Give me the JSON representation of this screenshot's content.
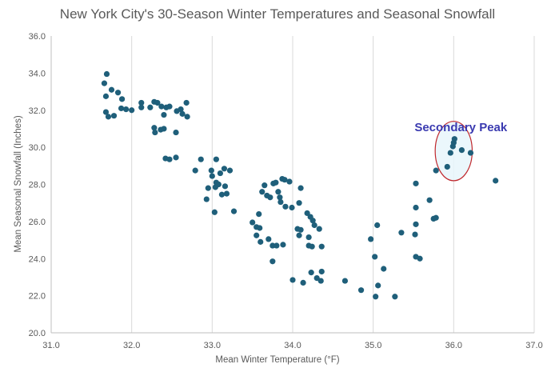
{
  "chart_data": {
    "type": "scatter",
    "title": "New York City's 30-Season Winter Temperatures and Seasonal Snowfall",
    "xlabel": "Mean Winter Temperature  (°F)",
    "ylabel": "Mean Seasonal Snowfall (Inches)",
    "xlim": [
      31.0,
      37.0
    ],
    "ylim": [
      20.0,
      36.0
    ],
    "x_ticks": [
      "31.0",
      "32.0",
      "33.0",
      "34.0",
      "35.0",
      "36.0",
      "37.0"
    ],
    "y_ticks": [
      "20.0",
      "22.0",
      "24.0",
      "26.0",
      "28.0",
      "30.0",
      "32.0",
      "34.0",
      "36.0"
    ],
    "grid": "vertical",
    "marker_color": "#1f5f7a",
    "annotation": {
      "text": "Secondary Peak",
      "color": "#3a3ab0",
      "x": 36.0,
      "y": 29.8,
      "ellipse_rx": 0.23,
      "ellipse_ry": 1.6
    },
    "points": [
      [
        31.69,
        33.95
      ],
      [
        31.66,
        33.45
      ],
      [
        31.68,
        32.75
      ],
      [
        31.75,
        33.1
      ],
      [
        31.83,
        32.95
      ],
      [
        31.88,
        32.6
      ],
      [
        31.68,
        31.9
      ],
      [
        31.71,
        31.65
      ],
      [
        31.78,
        31.7
      ],
      [
        31.87,
        32.1
      ],
      [
        31.93,
        32.05
      ],
      [
        32.0,
        32.0
      ],
      [
        32.12,
        32.15
      ],
      [
        32.12,
        32.4
      ],
      [
        32.23,
        32.15
      ],
      [
        32.28,
        32.45
      ],
      [
        32.32,
        32.4
      ],
      [
        32.37,
        32.2
      ],
      [
        32.43,
        32.15
      ],
      [
        32.47,
        32.2
      ],
      [
        32.4,
        31.75
      ],
      [
        32.28,
        31.05
      ],
      [
        32.29,
        30.8
      ],
      [
        32.36,
        30.95
      ],
      [
        32.4,
        31.0
      ],
      [
        32.55,
        30.8
      ],
      [
        32.56,
        31.95
      ],
      [
        32.61,
        32.05
      ],
      [
        32.63,
        31.8
      ],
      [
        32.68,
        32.4
      ],
      [
        32.69,
        31.65
      ],
      [
        32.42,
        29.4
      ],
      [
        32.47,
        29.35
      ],
      [
        32.55,
        29.45
      ],
      [
        32.79,
        28.75
      ],
      [
        32.86,
        29.35
      ],
      [
        32.95,
        27.8
      ],
      [
        32.93,
        27.2
      ],
      [
        32.99,
        28.75
      ],
      [
        33.0,
        28.45
      ],
      [
        33.05,
        29.35
      ],
      [
        33.04,
        27.85
      ],
      [
        33.05,
        28.1
      ],
      [
        33.08,
        28.0
      ],
      [
        33.1,
        28.6
      ],
      [
        33.12,
        27.45
      ],
      [
        33.15,
        28.85
      ],
      [
        33.16,
        27.9
      ],
      [
        33.18,
        27.5
      ],
      [
        33.22,
        28.75
      ],
      [
        33.03,
        26.5
      ],
      [
        33.27,
        26.55
      ],
      [
        33.5,
        25.95
      ],
      [
        33.55,
        25.25
      ],
      [
        33.58,
        26.4
      ],
      [
        33.55,
        25.7
      ],
      [
        33.59,
        25.65
      ],
      [
        33.62,
        27.6
      ],
      [
        33.65,
        27.95
      ],
      [
        33.68,
        27.4
      ],
      [
        33.72,
        27.3
      ],
      [
        33.76,
        28.05
      ],
      [
        33.79,
        28.1
      ],
      [
        33.82,
        27.6
      ],
      [
        33.84,
        27.3
      ],
      [
        33.85,
        27.05
      ],
      [
        33.87,
        28.3
      ],
      [
        33.9,
        28.25
      ],
      [
        33.96,
        28.15
      ],
      [
        33.91,
        26.8
      ],
      [
        33.99,
        26.75
      ],
      [
        34.1,
        27.8
      ],
      [
        34.08,
        27.0
      ],
      [
        33.6,
        24.9
      ],
      [
        33.7,
        25.05
      ],
      [
        33.75,
        24.7
      ],
      [
        33.8,
        24.7
      ],
      [
        33.88,
        24.75
      ],
      [
        33.75,
        23.85
      ],
      [
        34.06,
        25.6
      ],
      [
        34.1,
        25.55
      ],
      [
        34.08,
        25.25
      ],
      [
        34.2,
        25.15
      ],
      [
        34.18,
        26.45
      ],
      [
        34.22,
        26.25
      ],
      [
        34.25,
        26.05
      ],
      [
        34.27,
        25.8
      ],
      [
        34.33,
        25.6
      ],
      [
        34.2,
        24.7
      ],
      [
        34.24,
        24.65
      ],
      [
        34.36,
        24.65
      ],
      [
        34.23,
        23.25
      ],
      [
        34.3,
        22.95
      ],
      [
        34.35,
        22.8
      ],
      [
        34.36,
        23.3
      ],
      [
        34.0,
        22.85
      ],
      [
        34.13,
        22.7
      ],
      [
        34.65,
        22.8
      ],
      [
        34.85,
        22.3
      ],
      [
        34.97,
        25.05
      ],
      [
        35.02,
        24.1
      ],
      [
        35.05,
        25.8
      ],
      [
        35.06,
        22.55
      ],
      [
        35.13,
        23.45
      ],
      [
        35.03,
        21.95
      ],
      [
        35.27,
        21.95
      ],
      [
        35.35,
        25.4
      ],
      [
        35.53,
        28.05
      ],
      [
        35.53,
        26.75
      ],
      [
        35.52,
        25.3
      ],
      [
        35.53,
        24.1
      ],
      [
        35.58,
        24.0
      ],
      [
        35.53,
        25.85
      ],
      [
        35.7,
        27.15
      ],
      [
        35.75,
        26.15
      ],
      [
        35.78,
        26.2
      ],
      [
        35.78,
        28.75
      ],
      [
        35.92,
        28.95
      ],
      [
        35.96,
        29.7
      ],
      [
        35.99,
        30.05
      ],
      [
        36.0,
        30.25
      ],
      [
        36.01,
        30.45
      ],
      [
        36.1,
        29.85
      ],
      [
        36.21,
        29.7
      ],
      [
        36.52,
        28.2
      ]
    ]
  }
}
